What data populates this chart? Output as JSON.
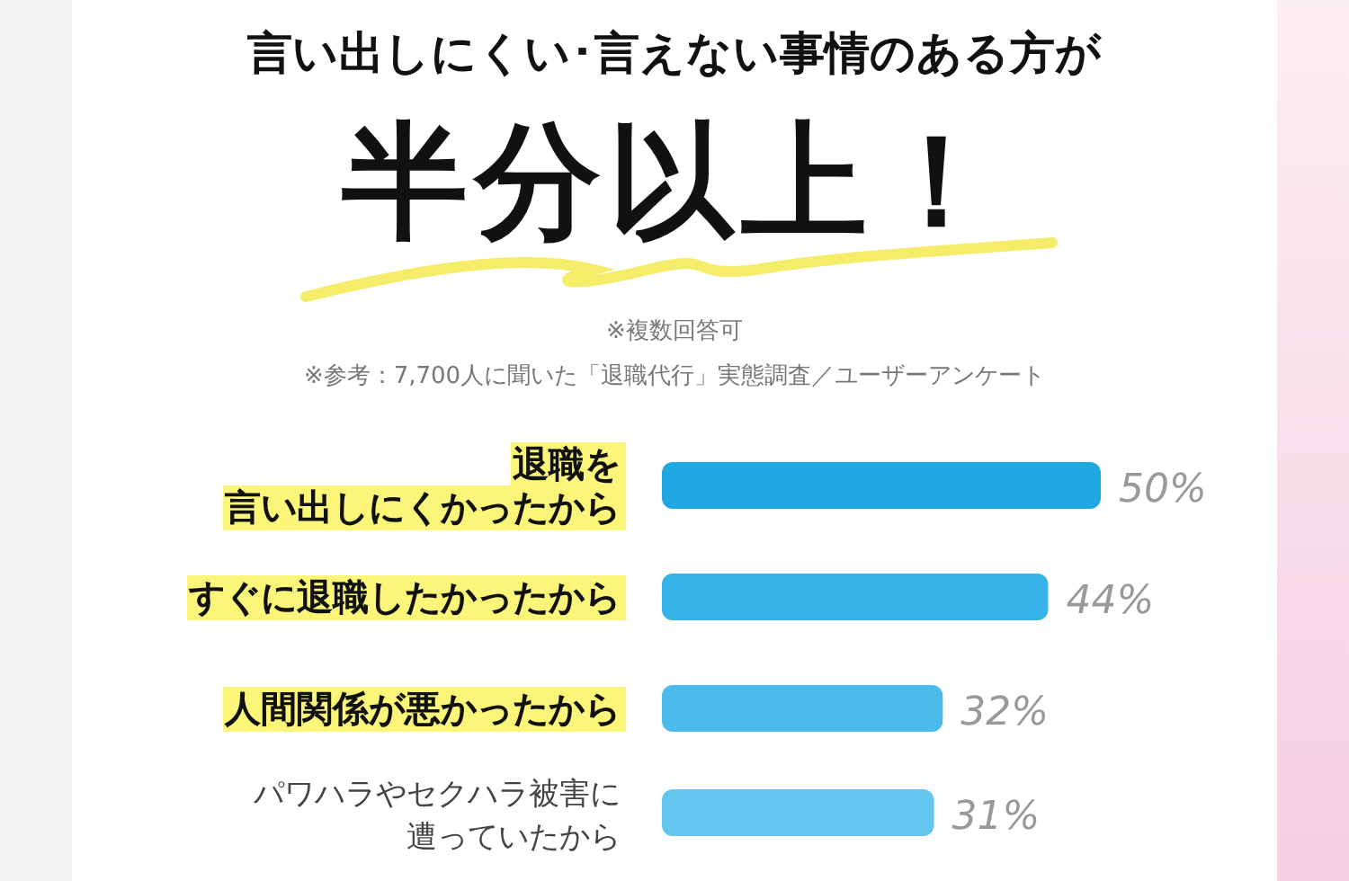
{
  "chart_data": {
    "type": "bar",
    "orientation": "horizontal",
    "title": "言い出しにくい･言えない事情のある方が",
    "subtitle": "半分以上！",
    "annotations": [
      "※複数回答可",
      "※参考：7,700人に聞いた「退職代行」実態調査／ユーザーアンケート"
    ],
    "categories": [
      "退職を言い出しにくかったから",
      "すぐに退職したかったから",
      "人間関係が悪かったから",
      "パワハラやセクハラ被害に遭っていたから"
    ],
    "values": [
      50,
      44,
      32,
      31
    ],
    "colors": [
      "#1ea7e1",
      "#35b2e7",
      "#4bbbea",
      "#64c5ee"
    ],
    "value_labels": [
      "50%",
      "44%",
      "32%",
      "31%"
    ]
  }
}
